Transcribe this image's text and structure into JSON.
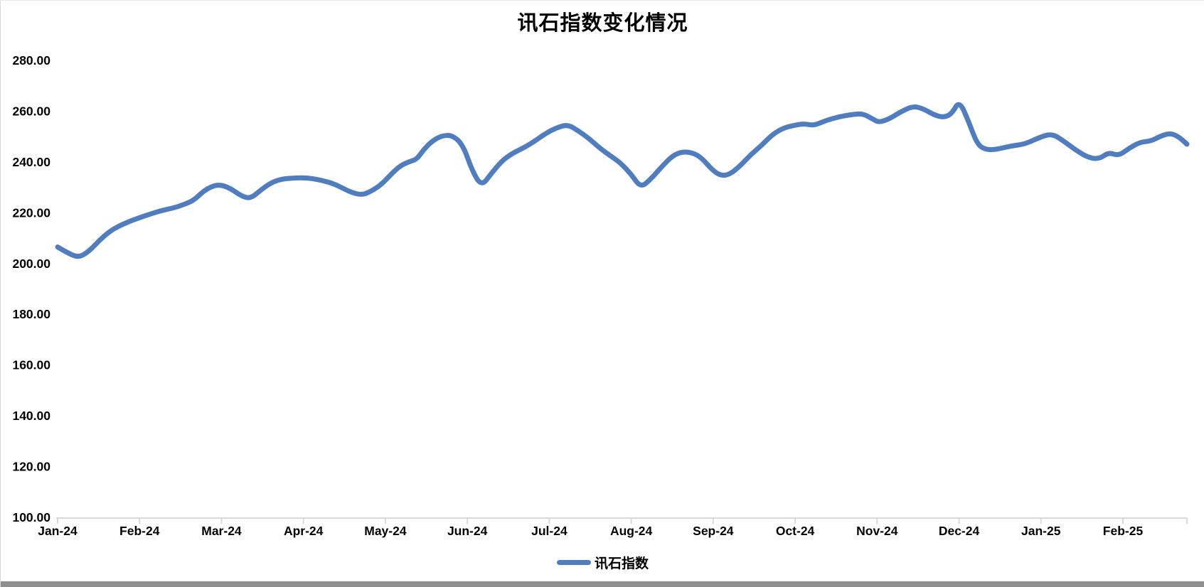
{
  "window": {
    "background": "#ffffff",
    "border_color": "#d9d9d9",
    "bottom_bar_color": "#8f8f8f"
  },
  "chart": {
    "title": "讯石指数变化情况",
    "axis_line_color": "#d9d9d9",
    "text_color": "#000000",
    "legend": {
      "label": "讯石指数",
      "marker_color": "#4f7dbf"
    }
  },
  "chart_data": {
    "type": "line",
    "title": "讯石指数变化情况",
    "xlabel": "",
    "ylabel": "",
    "grid": false,
    "legend_position": "bottom-center",
    "ylim": [
      100,
      280
    ],
    "y_tick_step": 20,
    "y_tick_labels": [
      "280.00",
      "260.00",
      "240.00",
      "220.00",
      "200.00",
      "180.00",
      "160.00",
      "140.00",
      "120.00",
      "100.00"
    ],
    "x_tick_labels": [
      "Jan-24",
      "Feb-24",
      "Mar-24",
      "Apr-24",
      "May-24",
      "Jun-24",
      "Jul-24",
      "Aug-24",
      "Sep-24",
      "Oct-24",
      "Nov-24",
      "Dec-24",
      "Jan-25",
      "Feb-25"
    ],
    "series": [
      {
        "name": "讯石指数",
        "color": "#4f7dbf",
        "stroke_width_px": 7,
        "point_format": [
          "x_px_along_time_axis",
          "index_value"
        ],
        "points": [
          [
            80,
            206.5
          ],
          [
            95,
            204.0
          ],
          [
            110,
            202.3
          ],
          [
            125,
            205.0
          ],
          [
            140,
            209.5
          ],
          [
            155,
            213.0
          ],
          [
            170,
            215.3
          ],
          [
            185,
            217.0
          ],
          [
            205,
            219.0
          ],
          [
            225,
            220.8
          ],
          [
            245,
            222.0
          ],
          [
            260,
            223.5
          ],
          [
            272,
            225.0
          ],
          [
            287,
            229.0
          ],
          [
            305,
            231.3
          ],
          [
            322,
            229.8
          ],
          [
            340,
            226.3
          ],
          [
            352,
            225.7
          ],
          [
            365,
            228.8
          ],
          [
            380,
            231.8
          ],
          [
            395,
            233.3
          ],
          [
            413,
            233.7
          ],
          [
            430,
            233.8
          ],
          [
            450,
            232.9
          ],
          [
            470,
            231.3
          ],
          [
            490,
            228.3
          ],
          [
            507,
            226.9
          ],
          [
            520,
            228.3
          ],
          [
            535,
            231.0
          ],
          [
            550,
            235.5
          ],
          [
            562,
            238.5
          ],
          [
            575,
            240.2
          ],
          [
            585,
            241.0
          ],
          [
            595,
            245.0
          ],
          [
            607,
            248.3
          ],
          [
            620,
            250.3
          ],
          [
            635,
            250.6
          ],
          [
            650,
            246.7
          ],
          [
            663,
            236.5
          ],
          [
            676,
            230.4
          ],
          [
            690,
            235.5
          ],
          [
            705,
            240.5
          ],
          [
            720,
            243.5
          ],
          [
            735,
            245.5
          ],
          [
            750,
            248.0
          ],
          [
            765,
            251.0
          ],
          [
            780,
            253.3
          ],
          [
            797,
            254.8
          ],
          [
            812,
            252.3
          ],
          [
            827,
            249.3
          ],
          [
            842,
            245.5
          ],
          [
            857,
            242.5
          ],
          [
            872,
            239.5
          ],
          [
            887,
            235.0
          ],
          [
            900,
            229.8
          ],
          [
            915,
            233.5
          ],
          [
            930,
            238.3
          ],
          [
            945,
            242.5
          ],
          [
            958,
            244.0
          ],
          [
            972,
            243.7
          ],
          [
            985,
            241.8
          ],
          [
            1000,
            237.0
          ],
          [
            1012,
            234.6
          ],
          [
            1025,
            235.0
          ],
          [
            1040,
            238.5
          ],
          [
            1055,
            243.0
          ],
          [
            1070,
            246.5
          ],
          [
            1085,
            250.8
          ],
          [
            1100,
            253.3
          ],
          [
            1115,
            254.4
          ],
          [
            1130,
            255.1
          ],
          [
            1143,
            254.3
          ],
          [
            1160,
            256.3
          ],
          [
            1180,
            257.9
          ],
          [
            1200,
            258.8
          ],
          [
            1213,
            259.0
          ],
          [
            1228,
            256.6
          ],
          [
            1235,
            255.6
          ],
          [
            1250,
            257.0
          ],
          [
            1265,
            259.7
          ],
          [
            1283,
            262.0
          ],
          [
            1297,
            261.0
          ],
          [
            1312,
            258.6
          ],
          [
            1325,
            257.5
          ],
          [
            1337,
            258.8
          ],
          [
            1348,
            264.2
          ],
          [
            1361,
            256.0
          ],
          [
            1373,
            247.0
          ],
          [
            1385,
            244.8
          ],
          [
            1400,
            244.9
          ],
          [
            1420,
            246.3
          ],
          [
            1440,
            247.0
          ],
          [
            1460,
            249.6
          ],
          [
            1478,
            251.2
          ],
          [
            1495,
            248.2
          ],
          [
            1512,
            244.6
          ],
          [
            1530,
            241.6
          ],
          [
            1545,
            241.2
          ],
          [
            1558,
            243.8
          ],
          [
            1572,
            242.4
          ],
          [
            1587,
            245.5
          ],
          [
            1602,
            247.8
          ],
          [
            1617,
            248.2
          ],
          [
            1632,
            250.3
          ],
          [
            1645,
            251.4
          ],
          [
            1657,
            249.8
          ],
          [
            1668,
            247.0
          ]
        ]
      }
    ]
  }
}
